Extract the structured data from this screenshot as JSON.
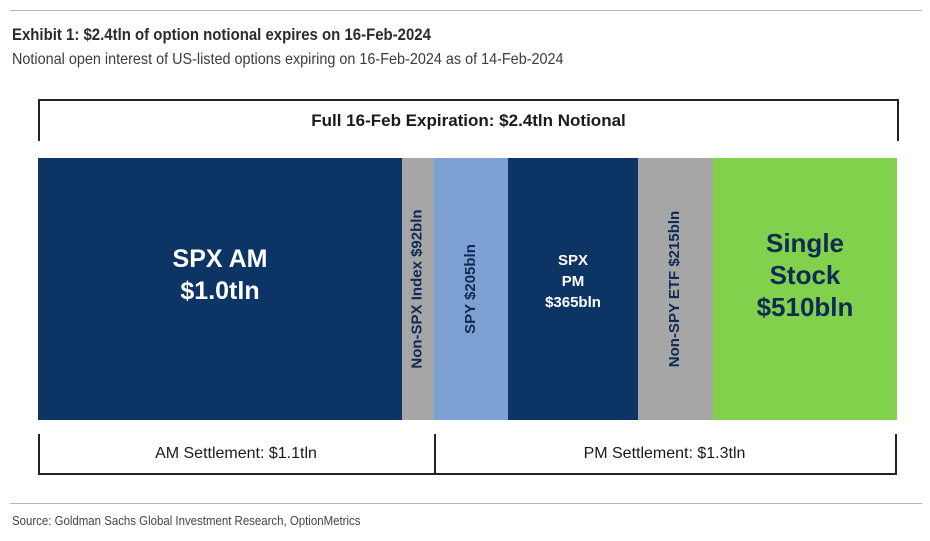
{
  "header": {
    "title": "Exhibit 1: $2.4tln of option notional expires on 16-Feb-2024",
    "subtitle": "Notional open interest of US-listed options expiring on 16-Feb-2024 as of 14-Feb-2024"
  },
  "chart_data": {
    "type": "bar",
    "subtype": "stacked-horizontal-segments",
    "title": "Exhibit 1: $2.4tln of option notional expires on 16-Feb-2024",
    "subtitle": "Notional open interest of US-listed options expiring on 16-Feb-2024 as of 14-Feb-2024",
    "unit": "bln USD",
    "total_label": "Full 16-Feb Expiration: $2.4tln Notional",
    "segments": [
      {
        "name": "SPX AM",
        "value": 1000,
        "label_lines": [
          "SPX AM",
          "$1.0tln"
        ],
        "color": "#0c3566",
        "text_color": "#ffffff",
        "orientation": "horizontal"
      },
      {
        "name": "Non-SPX Index",
        "value": 92,
        "label_lines": [
          "Non-SPX Index $92bln"
        ],
        "color": "#a6a6a6",
        "text_color": "#0d2b55",
        "orientation": "vertical"
      },
      {
        "name": "SPY",
        "value": 205,
        "label_lines": [
          "SPY $205bln"
        ],
        "color": "#7ea1d4",
        "text_color": "#0d2b55",
        "orientation": "vertical"
      },
      {
        "name": "SPX PM",
        "value": 365,
        "label_lines": [
          "SPX",
          "PM",
          "$365bln"
        ],
        "color": "#0c3566",
        "text_color": "#ffffff",
        "orientation": "horizontal"
      },
      {
        "name": "Non-SPY ETF",
        "value": 215,
        "label_lines": [
          "Non-SPY ETF $215bln"
        ],
        "color": "#a6a6a6",
        "text_color": "#0d2b55",
        "orientation": "vertical"
      },
      {
        "name": "Single Stock",
        "value": 510,
        "label_lines": [
          "Single",
          "Stock",
          "$510bln"
        ],
        "color": "#82d14c",
        "text_color": "#0d2b55",
        "orientation": "horizontal"
      }
    ],
    "groups": [
      {
        "label": "AM Settlement: $1.1tln",
        "members": [
          "SPX AM",
          "Non-SPX Index"
        ]
      },
      {
        "label": "PM Settlement: $1.3tln",
        "members": [
          "SPY",
          "SPX PM",
          "Non-SPY ETF",
          "Single Stock"
        ]
      }
    ]
  },
  "footer": {
    "source": "Source: Goldman Sachs Global Investment Research, OptionMetrics"
  }
}
